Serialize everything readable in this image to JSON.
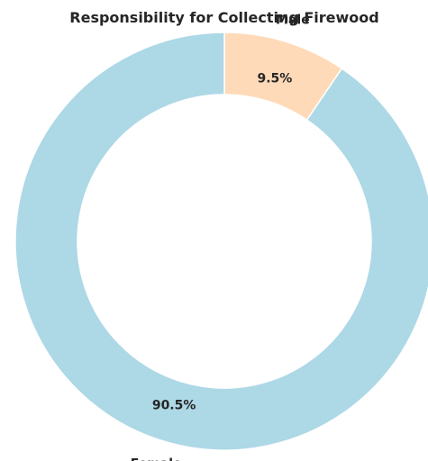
{
  "chart_data": {
    "type": "pie",
    "title": "Responsibility for Collecting Firewood",
    "donut": true,
    "start": "top",
    "direction": "clockwise",
    "slices": [
      {
        "label": "Male",
        "value": 9.5,
        "pct_label": "9.5%",
        "color": "#ffdab9"
      },
      {
        "label": "Female",
        "value": 90.5,
        "pct_label": "90.5%",
        "color": "#add8e6"
      }
    ],
    "edge_color": "#ffffff"
  }
}
